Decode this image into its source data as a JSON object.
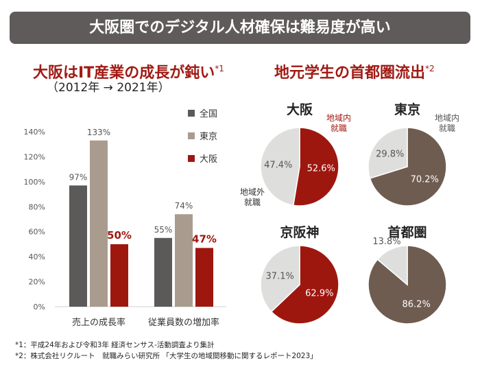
{
  "banner": {
    "title": "大阪圏でのデジタル人材確保は難易度が高い"
  },
  "bar_section": {
    "title": "大阪はIT産業の成長が鈍い",
    "title_mark": "*1",
    "subtitle": "（2012年 → 2021年）"
  },
  "pie_section": {
    "title": "地元学生の首都圏流出",
    "title_mark": "*2"
  },
  "footnotes": [
    "*1：平成24年および令和3年 経済センサス-活動調査より集計",
    "*2：株式会社リクルート　就職みらい研究所 「大学生の地域間移動に関するレポート2023」"
  ],
  "colors": {
    "banner": "#5f5b5a",
    "national": "#5c5a59",
    "tokyo": "#a99c8f",
    "osaka": "#9e170f",
    "pie_local_tokyo": "#6f5c50",
    "pie_outside": "#dededd",
    "title_red": "#a01a14"
  },
  "chart_data": [
    {
      "type": "bar",
      "categories": [
        "売上の成長率",
        "従業員数の増加率"
      ],
      "series": [
        {
          "name": "全国",
          "values": [
            97,
            55
          ],
          "labels": [
            "97%",
            "55%"
          ]
        },
        {
          "name": "東京",
          "values": [
            133,
            74
          ],
          "labels": [
            "133%",
            "74%"
          ]
        },
        {
          "name": "大阪",
          "values": [
            50,
            47
          ],
          "labels": [
            "50%",
            "47%"
          ]
        }
      ],
      "ylim": [
        0,
        140
      ],
      "yticks": [
        "0%",
        "20%",
        "40%",
        "60%",
        "80%",
        "100%",
        "120%",
        "140%"
      ],
      "legend_position": "top-right"
    },
    {
      "type": "pie",
      "title": "大阪",
      "slices": [
        {
          "label": "地域内\n就職",
          "value": 52.6,
          "text": "52.6%"
        },
        {
          "label": "地域外\n就職",
          "value": 47.4,
          "text": "47.4%"
        }
      ]
    },
    {
      "type": "pie",
      "title": "東京",
      "slices": [
        {
          "label": "地域内\n就職",
          "value": 70.2,
          "text": "70.2%"
        },
        {
          "label": "",
          "value": 29.8,
          "text": "29.8%"
        }
      ]
    },
    {
      "type": "pie",
      "title": "京阪神",
      "slices": [
        {
          "label": "",
          "value": 62.9,
          "text": "62.9%"
        },
        {
          "label": "",
          "value": 37.1,
          "text": "37.1%"
        }
      ]
    },
    {
      "type": "pie",
      "title": "首都圏",
      "slices": [
        {
          "label": "",
          "value": 86.2,
          "text": "86.2%"
        },
        {
          "label": "",
          "value": 13.8,
          "text": "13.8%"
        }
      ]
    }
  ]
}
